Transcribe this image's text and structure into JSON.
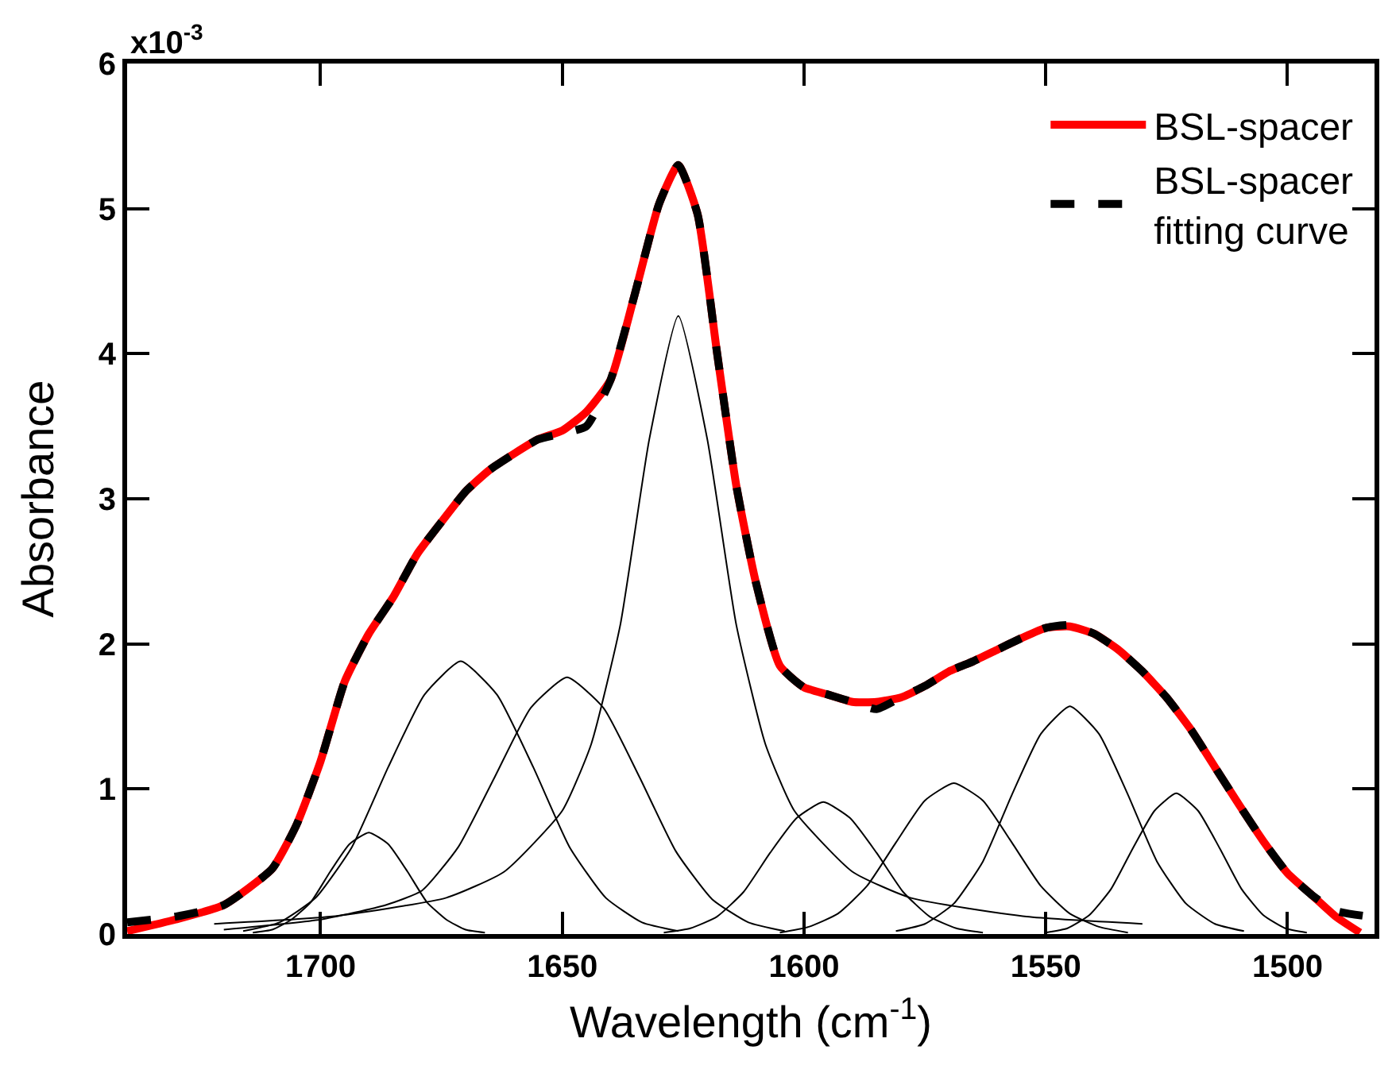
{
  "chart_data": {
    "type": "line",
    "xlabel": "Wavelength (cm$^{-1}$)",
    "ylabel": "Absorbance",
    "xlim": [
      1740,
      1482
    ],
    "xticks": [
      1700,
      1650,
      1600,
      1550,
      1500
    ],
    "ylim": [
      0,
      6
    ],
    "yticks": [
      0,
      1,
      2,
      3,
      4,
      5,
      6
    ],
    "annotations": [
      "x10$^{-3}$"
    ],
    "legend": "top right",
    "marker": "none",
    "series": [
      {
        "name": "BSL-spacer",
        "color": "#ff0000",
        "line_style": "solid",
        "x": [
          1740,
          1730,
          1720,
          1710,
          1705,
          1700,
          1695,
          1690,
          1685,
          1680,
          1675,
          1670,
          1665,
          1660,
          1655,
          1650,
          1645,
          1640,
          1635,
          1630,
          1626,
          1622,
          1618,
          1614,
          1610,
          1605,
          1600,
          1595,
          1590,
          1585,
          1580,
          1575,
          1570,
          1565,
          1560,
          1555,
          1550,
          1545,
          1540,
          1535,
          1530,
          1525,
          1520,
          1515,
          1510,
          1505,
          1500,
          1495,
          1490,
          1485
        ],
        "values": [
          0.02,
          0.1,
          0.2,
          0.45,
          0.75,
          1.19,
          1.74,
          2.07,
          2.32,
          2.62,
          2.84,
          3.05,
          3.2,
          3.31,
          3.41,
          3.47,
          3.6,
          3.82,
          4.41,
          5.03,
          5.3,
          4.96,
          4.01,
          3.09,
          2.43,
          1.85,
          1.7,
          1.65,
          1.6,
          1.6,
          1.63,
          1.71,
          1.81,
          1.88,
          1.96,
          2.04,
          2.11,
          2.12,
          2.07,
          1.96,
          1.81,
          1.63,
          1.41,
          1.15,
          0.89,
          0.64,
          0.42,
          0.27,
          0.12,
          0.01
        ]
      },
      {
        "name": "BSL-spacer\nfitting curve",
        "color": "#000000",
        "line_style": "dashed",
        "x": [
          1740,
          1730,
          1720,
          1710,
          1705,
          1700,
          1695,
          1690,
          1685,
          1680,
          1675,
          1670,
          1665,
          1660,
          1655,
          1650,
          1645,
          1640,
          1635,
          1630,
          1626,
          1622,
          1618,
          1614,
          1610,
          1605,
          1600,
          1595,
          1590,
          1585,
          1580,
          1575,
          1570,
          1565,
          1560,
          1555,
          1550,
          1545,
          1540,
          1535,
          1530,
          1525,
          1520,
          1515,
          1510,
          1505,
          1500,
          1495,
          1490,
          1483
        ],
        "values": [
          0.08,
          0.12,
          0.2,
          0.45,
          0.75,
          1.19,
          1.74,
          2.07,
          2.32,
          2.62,
          2.84,
          3.05,
          3.2,
          3.31,
          3.41,
          3.45,
          3.5,
          3.82,
          4.41,
          5.03,
          5.3,
          4.96,
          4.01,
          3.09,
          2.43,
          1.85,
          1.7,
          1.65,
          1.6,
          1.55,
          1.63,
          1.71,
          1.81,
          1.88,
          1.96,
          2.04,
          2.11,
          2.13,
          2.07,
          1.96,
          1.81,
          1.63,
          1.41,
          1.15,
          0.89,
          0.64,
          0.42,
          0.27,
          0.16,
          0.12
        ]
      },
      {
        "color": "#000000",
        "line_style": "solid",
        "x": [
          1714,
          1710,
          1706,
          1702,
          1698,
          1694,
          1690,
          1686,
          1682,
          1678,
          1674,
          1670,
          1666
        ],
        "values": [
          0.01,
          0.03,
          0.1,
          0.22,
          0.43,
          0.62,
          0.7,
          0.62,
          0.43,
          0.22,
          0.1,
          0.03,
          0.01
        ]
      },
      {
        "color": "#000000",
        "line_style": "solid",
        "x": [
          1716,
          1708.5,
          1701,
          1693.5,
          1686,
          1678.5,
          1671,
          1663.5,
          1656,
          1648.5,
          1641,
          1633.5,
          1626
        ],
        "values": [
          0.02,
          0.08,
          0.25,
          0.6,
          1.15,
          1.65,
          1.88,
          1.65,
          1.15,
          0.6,
          0.25,
          0.08,
          0.02
        ]
      },
      {
        "color": "#000000",
        "line_style": "solid",
        "x": [
          1720,
          1700,
          1686.5,
          1679,
          1671.5,
          1664,
          1656.5,
          1649,
          1641.5,
          1634,
          1626.5,
          1619,
          1611.5,
          1604
        ],
        "values": [
          0.03,
          0.1,
          0.2,
          0.3,
          0.6,
          1.08,
          1.56,
          1.77,
          1.56,
          1.08,
          0.57,
          0.24,
          0.08,
          0.02
        ]
      },
      {
        "color": "#000000",
        "line_style": "solid",
        "x": [
          1722,
          1698,
          1674,
          1662,
          1650,
          1644,
          1638,
          1632,
          1626,
          1620,
          1614,
          1608,
          1602,
          1590,
          1578,
          1554,
          1530
        ],
        "values": [
          0.07,
          0.12,
          0.25,
          0.43,
          0.85,
          1.31,
          2.13,
          3.41,
          4.26,
          3.41,
          2.13,
          1.31,
          0.85,
          0.43,
          0.25,
          0.12,
          0.07
        ]
      },
      {
        "color": "#000000",
        "line_style": "solid",
        "x": [
          1629,
          1623.5,
          1618,
          1612.5,
          1607,
          1601.5,
          1596,
          1590.5,
          1585,
          1579.5,
          1574,
          1568.5,
          1563
        ],
        "values": [
          0.01,
          0.04,
          0.12,
          0.29,
          0.56,
          0.8,
          0.91,
          0.8,
          0.56,
          0.29,
          0.12,
          0.04,
          0.01
        ]
      },
      {
        "color": "#000000",
        "line_style": "solid",
        "x": [
          1605,
          1599,
          1593,
          1587,
          1581,
          1575,
          1569,
          1563,
          1557,
          1551,
          1545,
          1539,
          1533
        ],
        "values": [
          0.01,
          0.05,
          0.14,
          0.33,
          0.63,
          0.92,
          1.04,
          0.92,
          0.63,
          0.33,
          0.14,
          0.05,
          0.01
        ]
      },
      {
        "color": "#000000",
        "line_style": "solid",
        "x": [
          1581,
          1575,
          1569,
          1563,
          1557,
          1551,
          1545,
          1539,
          1533,
          1527,
          1521,
          1515,
          1509
        ],
        "values": [
          0.02,
          0.07,
          0.21,
          0.5,
          0.96,
          1.38,
          1.57,
          1.38,
          0.96,
          0.5,
          0.21,
          0.07,
          0.02
        ]
      },
      {
        "color": "#000000",
        "line_style": "solid",
        "x": [
          1550,
          1545.5,
          1541,
          1536.5,
          1532,
          1527.5,
          1523,
          1518.5,
          1514,
          1509.5,
          1505,
          1500.5,
          1496
        ],
        "values": [
          0.01,
          0.04,
          0.13,
          0.31,
          0.59,
          0.85,
          0.97,
          0.85,
          0.59,
          0.31,
          0.13,
          0.04,
          0.01
        ]
      }
    ]
  }
}
